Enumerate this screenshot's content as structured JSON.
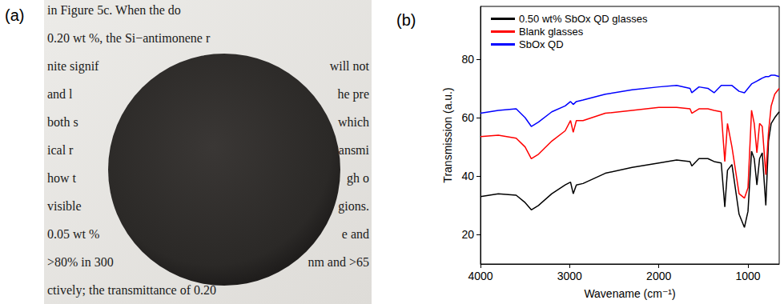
{
  "photo": {
    "label": "(a)",
    "lines": [
      {
        "left": "in Figure 5c. When the do"
      },
      {
        "left": "0.20 wt %, the Si−antimonene r"
      },
      {
        "left": "nite signif",
        "right": "will not"
      },
      {
        "left": "and l",
        "right": "he pre"
      },
      {
        "left": "both s",
        "right": "which"
      },
      {
        "left": "ical r",
        "right": "ansmi"
      },
      {
        "left": "how t",
        "right": "gh o"
      },
      {
        "left": "visible",
        "right": "gions."
      },
      {
        "left": "0.05 wt %",
        "right": "e and"
      },
      {
        "left": ">80% in 300",
        "right": "nm and >65"
      },
      {
        "left": "ctively; the transmittance of 0.20"
      }
    ]
  },
  "chart_data": {
    "label": "(b)",
    "type": "line",
    "x_label": "Wavename (cm⁻¹)",
    "y_label": "Transmission (a.u.)",
    "xlim": [
      4000,
      650
    ],
    "xticks": [
      1000,
      2000,
      3000,
      4000
    ],
    "ylim": [
      10,
      98
    ],
    "yticks": [
      20,
      40,
      60,
      80
    ],
    "grid": false,
    "legend": "upper left",
    "x": [
      4000,
      3800,
      3600,
      3500,
      3430,
      3350,
      3200,
      3050,
      2990,
      2960,
      2925,
      2850,
      2600,
      2300,
      2000,
      1800,
      1650,
      1630,
      1550,
      1450,
      1380,
      1300,
      1260,
      1230,
      1180,
      1100,
      1040,
      1000,
      960,
      930,
      900,
      870,
      840,
      800,
      770,
      740,
      700,
      650
    ],
    "series": [
      {
        "name": "0.50 wt% SbOx QD glasses",
        "color": "#000000",
        "values": [
          33,
          34,
          33.5,
          31,
          28.5,
          30,
          34,
          37,
          38,
          34,
          37,
          37.5,
          41,
          43,
          44.5,
          45.5,
          45,
          43.5,
          46,
          46,
          45,
          44.5,
          29.5,
          42,
          44,
          27,
          22.5,
          28,
          48.5,
          46,
          37,
          46,
          48,
          30,
          52,
          58,
          60,
          62
        ]
      },
      {
        "name": "Blank glasses",
        "color": "#ff0000",
        "values": [
          53.5,
          54,
          53,
          50,
          46,
          47.5,
          52,
          55.5,
          59,
          55,
          59,
          59,
          61.5,
          62.5,
          63.5,
          63.5,
          63,
          61.5,
          63,
          63,
          62.5,
          62,
          45,
          58,
          50,
          34,
          32.5,
          36,
          62.5,
          58,
          48,
          58,
          57,
          40.5,
          55,
          64,
          68,
          70
        ]
      },
      {
        "name": "SbOx QD",
        "color": "#0000ff",
        "values": [
          61.5,
          62.5,
          63,
          60,
          57,
          58.5,
          62,
          64,
          65.5,
          64.5,
          65.5,
          66,
          68,
          69.5,
          70.5,
          71,
          70,
          68.5,
          70.5,
          70,
          68.5,
          71,
          71,
          71,
          71,
          69,
          68.5,
          70,
          71.5,
          72,
          72.5,
          73,
          73.5,
          74,
          74,
          74.5,
          74.5,
          74
        ]
      }
    ]
  }
}
